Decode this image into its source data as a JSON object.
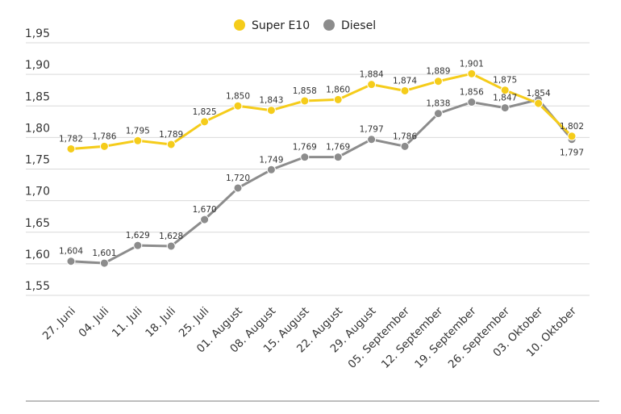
{
  "chart_data": {
    "type": "line",
    "title": "",
    "xlabel": "",
    "ylabel": "",
    "categories": [
      "27. Juni",
      "04. Juli",
      "11. Juli",
      "18. Juli",
      "25. Juli",
      "01. August",
      "08. August",
      "15. August",
      "22. August",
      "29. August",
      "05. September",
      "12. September",
      "19. September",
      "26. September",
      "03. Oktober",
      "10. Oktober"
    ],
    "ylim": [
      1.55,
      1.95
    ],
    "yticks": [
      "1,55",
      "1,60",
      "1,65",
      "1,70",
      "1,75",
      "1,80",
      "1,85",
      "1,90",
      "1,95"
    ],
    "ytick_values": [
      1.55,
      1.6,
      1.65,
      1.7,
      1.75,
      1.8,
      1.85,
      1.9,
      1.95
    ],
    "grid": true,
    "legend_position": "top-center",
    "series": [
      {
        "name": "Super E10",
        "color": "#f5cc1a",
        "values": [
          1.782,
          1.786,
          1.795,
          1.789,
          1.825,
          1.85,
          1.843,
          1.858,
          1.86,
          1.884,
          1.874,
          1.889,
          1.901,
          1.875,
          1.854,
          1.802
        ],
        "labels": [
          "1,782",
          "1,786",
          "1,795",
          "1,789",
          "1,825",
          "1,850",
          "1,843",
          "1,858",
          "1,860",
          "1,884",
          "1,874",
          "1,889",
          "1,901",
          "1,875",
          "1,854",
          "1,802"
        ]
      },
      {
        "name": "Diesel",
        "color": "#8c8c8c",
        "values": [
          1.604,
          1.601,
          1.629,
          1.628,
          1.67,
          1.72,
          1.749,
          1.769,
          1.769,
          1.797,
          1.786,
          1.838,
          1.856,
          1.847,
          1.86,
          1.797
        ],
        "labels": [
          "1,604",
          "1,601",
          "1,629",
          "1,628",
          "1,670",
          "1,720",
          "1,749",
          "1,769",
          "1,769",
          "1,797",
          "1,786",
          "1,838",
          "1,856",
          "1,847",
          "",
          "1,797"
        ]
      }
    ]
  }
}
